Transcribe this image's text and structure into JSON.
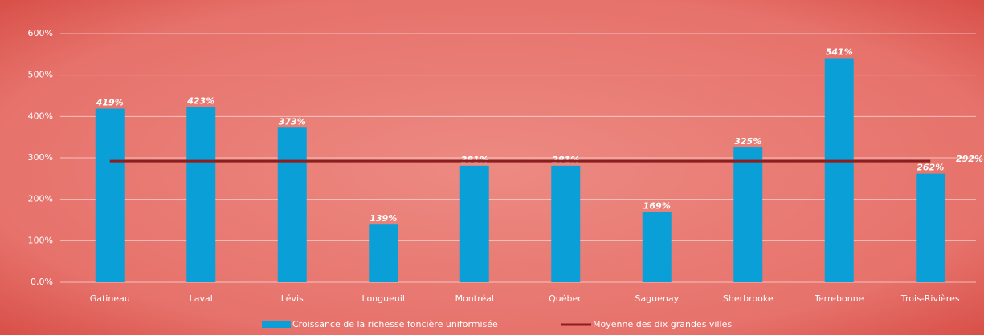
{
  "chart_data": {
    "type": "bar",
    "categories": [
      "Gatineau",
      "Laval",
      "Lévis",
      "Longueuil",
      "Montréal",
      "Québec",
      "Saguenay",
      "Sherbrooke",
      "Terrebonne",
      "Trois-Rivières"
    ],
    "series": [
      {
        "name": "Croissance de la richesse foncière uniformisée",
        "color": "#0b9fd8",
        "values": [
          419,
          423,
          373,
          139,
          281,
          281,
          169,
          325,
          541,
          262
        ],
        "value_labels": [
          "419%",
          "423%",
          "373%",
          "139%",
          "281%",
          "281%",
          "169%",
          "325%",
          "541%",
          "262%"
        ]
      }
    ],
    "reference_line": {
      "name": "Moyenne des dix grandes villes",
      "color": "#8b1e1e",
      "value": 292,
      "value_label": "292%"
    },
    "ylim": [
      0,
      600
    ],
    "yticks": [
      {
        "value": 0,
        "label": "0,0%"
      },
      {
        "value": 100,
        "label": "100%"
      },
      {
        "value": 200,
        "label": "200%"
      },
      {
        "value": 300,
        "label": "300%"
      },
      {
        "value": 400,
        "label": "400%"
      },
      {
        "value": 500,
        "label": "500%"
      },
      {
        "value": 600,
        "label": "600%"
      }
    ],
    "grid": true
  }
}
